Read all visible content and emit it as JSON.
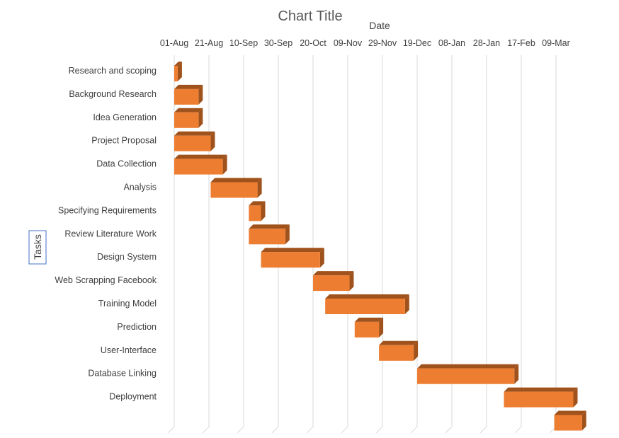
{
  "chart_data": {
    "type": "bar",
    "orientation": "horizontal",
    "style": "3d-gantt",
    "title": "Chart Title",
    "xlabel": "Date",
    "ylabel": "Tasks",
    "x_axis_position": "top",
    "x_tick_labels": [
      "01-Aug",
      "21-Aug",
      "10-Sep",
      "30-Sep",
      "20-Oct",
      "09-Nov",
      "29-Nov",
      "19-Dec",
      "08-Jan",
      "28-Jan",
      "17-Feb",
      "09-Mar"
    ],
    "xlim": [
      "2018-08-01",
      "2019-03-09"
    ],
    "grid": "vertical",
    "bar_color": "#ED7D31",
    "bar_side_color": "#A0521C",
    "gridline_color": "#D9D9D9",
    "axis_title_border_color": "#4472C4",
    "categories": [
      "Research and scoping",
      "Background Research",
      "Idea Generation",
      "Project Proposal",
      "Data Collection",
      "Analysis",
      "Specifying Requirements",
      "Review Literature Work",
      "Design System",
      "Web Scrapping Facebook",
      "Training Model",
      "Prediction",
      "User-Interface",
      "Database Linking",
      "Deployment",
      ""
    ],
    "series": [
      {
        "start": [
          "2018-08-01",
          "2018-08-01",
          "2018-08-01",
          "2018-08-01",
          "2018-08-01",
          "2018-08-22",
          "2018-09-13",
          "2018-09-13",
          "2018-09-20",
          "2018-10-20",
          "2018-10-27",
          "2018-11-13",
          "2018-11-27",
          "2018-12-19",
          "2019-02-07",
          "2019-03-08"
        ],
        "end": [
          "2018-08-03",
          "2018-08-15",
          "2018-08-15",
          "2018-08-22",
          "2018-08-29",
          "2018-09-18",
          "2018-09-20",
          "2018-10-04",
          "2018-10-24",
          "2018-11-10",
          "2018-12-12",
          "2018-11-27",
          "2018-12-17",
          "2019-02-13",
          "2019-03-19",
          "2019-03-24"
        ]
      }
    ]
  }
}
